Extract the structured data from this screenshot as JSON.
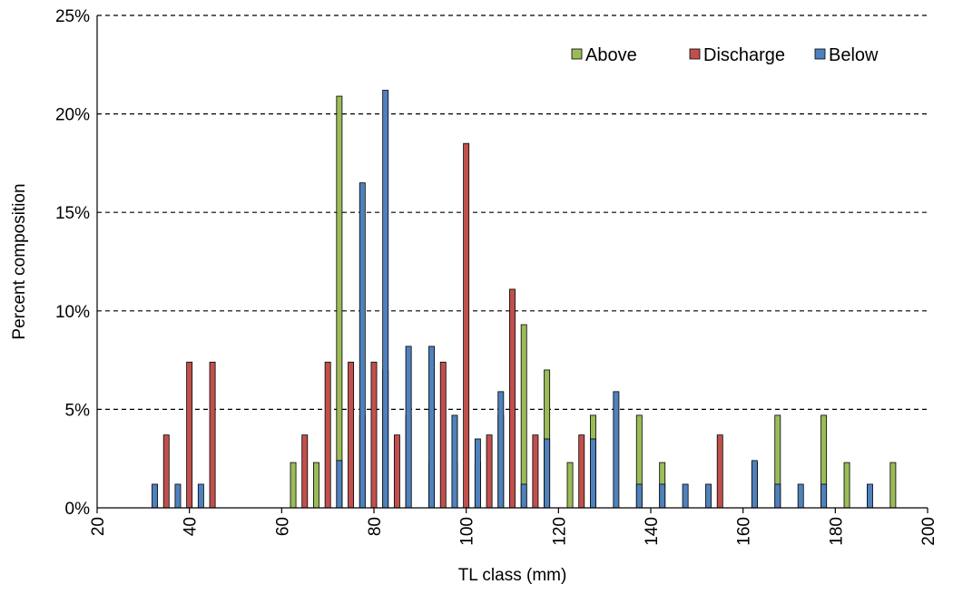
{
  "chart_data": {
    "type": "bar",
    "xlabel": "TL class (mm)",
    "ylabel": "Percent composition",
    "xlim": [
      20,
      200
    ],
    "ylim": [
      0,
      25
    ],
    "x_ticks": [
      "20",
      "40",
      "60",
      "80",
      "100",
      "120",
      "140",
      "160",
      "180",
      "200"
    ],
    "y_ticks": [
      "0%",
      "5%",
      "10%",
      "15%",
      "20%",
      "25%"
    ],
    "grid": "horizontal dashed",
    "legend_position": "top-right",
    "bin_width": 5,
    "series": [
      {
        "name": "Above",
        "color": "#9bbb59",
        "points": [
          {
            "x": 65,
            "y": 2.3
          },
          {
            "x": 70,
            "y": 2.3
          },
          {
            "x": 75,
            "y": 20.9
          },
          {
            "x": 80,
            "y": 4.7
          },
          {
            "x": 85,
            "y": 7.0
          },
          {
            "x": 90,
            "y": 4.7
          },
          {
            "x": 95,
            "y": 2.3
          },
          {
            "x": 100,
            "y": 2.3
          },
          {
            "x": 105,
            "y": 2.3
          },
          {
            "x": 110,
            "y": 4.7
          },
          {
            "x": 115,
            "y": 9.3
          },
          {
            "x": 120,
            "y": 7.0
          },
          {
            "x": 125,
            "y": 2.3
          },
          {
            "x": 130,
            "y": 4.7
          },
          {
            "x": 140,
            "y": 4.7
          },
          {
            "x": 145,
            "y": 2.3
          },
          {
            "x": 165,
            "y": 2.3
          },
          {
            "x": 170,
            "y": 4.7
          },
          {
            "x": 180,
            "y": 4.7
          },
          {
            "x": 185,
            "y": 2.3
          },
          {
            "x": 195,
            "y": 2.3
          }
        ]
      },
      {
        "name": "Discharge",
        "color": "#c0504d",
        "points": [
          {
            "x": 35,
            "y": 3.7
          },
          {
            "x": 40,
            "y": 7.4
          },
          {
            "x": 45,
            "y": 7.4
          },
          {
            "x": 65,
            "y": 3.7
          },
          {
            "x": 70,
            "y": 7.4
          },
          {
            "x": 75,
            "y": 7.4
          },
          {
            "x": 80,
            "y": 7.4
          },
          {
            "x": 85,
            "y": 3.7
          },
          {
            "x": 95,
            "y": 7.4
          },
          {
            "x": 100,
            "y": 18.5
          },
          {
            "x": 105,
            "y": 3.7
          },
          {
            "x": 110,
            "y": 11.1
          },
          {
            "x": 115,
            "y": 3.7
          },
          {
            "x": 125,
            "y": 3.7
          },
          {
            "x": 155,
            "y": 3.7
          }
        ]
      },
      {
        "name": "Below",
        "color": "#4f81bd",
        "points": [
          {
            "x": 30,
            "y": 1.2
          },
          {
            "x": 35,
            "y": 1.2
          },
          {
            "x": 40,
            "y": 1.2
          },
          {
            "x": 70,
            "y": 2.4
          },
          {
            "x": 75,
            "y": 16.5
          },
          {
            "x": 80,
            "y": 21.2
          },
          {
            "x": 85,
            "y": 8.2
          },
          {
            "x": 90,
            "y": 8.2
          },
          {
            "x": 95,
            "y": 4.7
          },
          {
            "x": 100,
            "y": 3.5
          },
          {
            "x": 105,
            "y": 5.9
          },
          {
            "x": 110,
            "y": 1.2
          },
          {
            "x": 115,
            "y": 3.5
          },
          {
            "x": 125,
            "y": 3.5
          },
          {
            "x": 130,
            "y": 5.9
          },
          {
            "x": 135,
            "y": 1.2
          },
          {
            "x": 140,
            "y": 1.2
          },
          {
            "x": 145,
            "y": 1.2
          },
          {
            "x": 150,
            "y": 1.2
          },
          {
            "x": 160,
            "y": 2.4
          },
          {
            "x": 165,
            "y": 1.2
          },
          {
            "x": 170,
            "y": 1.2
          },
          {
            "x": 175,
            "y": 1.2
          },
          {
            "x": 185,
            "y": 1.2
          }
        ]
      }
    ]
  }
}
